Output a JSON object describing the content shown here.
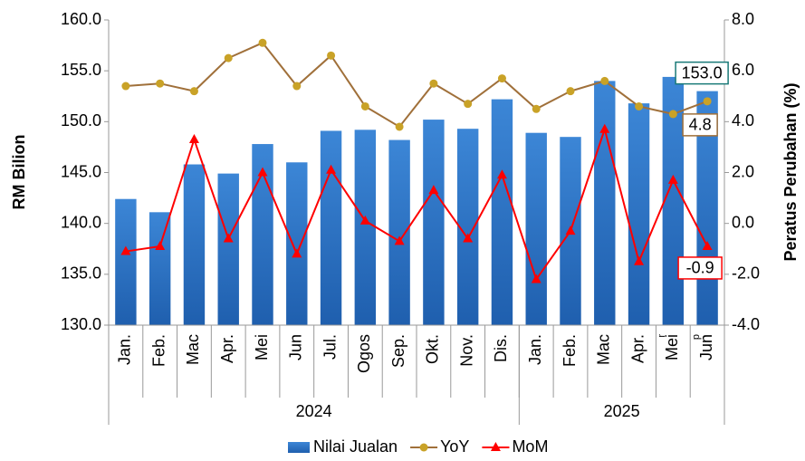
{
  "chart_data": {
    "type": "bar_line",
    "categories": [
      "Jan.",
      "Feb.",
      "Mac",
      "Apr.",
      "Mei",
      "Jun",
      "Jul.",
      "Ogos",
      "Sep.",
      "Okt.",
      "Nov.",
      "Dis.",
      "Jan.",
      "Feb.",
      "Mac",
      "Apr.",
      "Mei",
      "Jun"
    ],
    "category_marks": [
      null,
      null,
      null,
      null,
      null,
      null,
      null,
      null,
      null,
      null,
      null,
      null,
      null,
      null,
      null,
      null,
      "r",
      "p"
    ],
    "groups": [
      {
        "label": "2024",
        "start": 0,
        "end": 11
      },
      {
        "label": "2025",
        "start": 12,
        "end": 17
      }
    ],
    "y_label": "RM Bilion",
    "y2_label": "Peratus Perubahan (%)",
    "ylim": [
      130,
      160
    ],
    "yticks": [
      {
        "value": 130,
        "label": "130.0"
      },
      {
        "value": 135,
        "label": "135.0"
      },
      {
        "value": 140,
        "label": "140.0"
      },
      {
        "value": 145,
        "label": "145.0"
      },
      {
        "value": 150,
        "label": "150.0"
      },
      {
        "value": 155,
        "label": "155.0"
      },
      {
        "value": 160,
        "label": "160.0"
      }
    ],
    "y2lim": [
      -4,
      8
    ],
    "y2ticks": [
      {
        "value": -4,
        "label": "-4.0"
      },
      {
        "value": -2,
        "label": "-2.0"
      },
      {
        "value": 0,
        "label": "0.0"
      },
      {
        "value": 2,
        "label": "2.0"
      },
      {
        "value": 4,
        "label": "4.0"
      },
      {
        "value": 6,
        "label": "6.0"
      },
      {
        "value": 8,
        "label": "8.0"
      }
    ],
    "legend": "bottom",
    "series": [
      {
        "name": "Nilai Jualan",
        "type": "bar",
        "color": "#2f78c9",
        "label_color": "#1a7a78",
        "values": [
          142.4,
          141.1,
          145.8,
          144.9,
          147.8,
          146.0,
          149.1,
          149.2,
          148.2,
          150.2,
          149.3,
          152.2,
          148.9,
          148.5,
          154.0,
          151.8,
          154.4,
          153.0
        ],
        "value_labels": [
          null,
          null,
          null,
          null,
          null,
          null,
          null,
          null,
          null,
          null,
          null,
          null,
          null,
          null,
          null,
          null,
          null,
          "153.0"
        ]
      },
      {
        "name": "YoY",
        "type": "line",
        "axis": "y2",
        "color": "#a0703a",
        "marker_color": "#c9a227",
        "marker": "circle",
        "label_color": "#a0703a",
        "values": [
          5.4,
          5.5,
          5.2,
          6.5,
          7.1,
          5.4,
          6.6,
          4.6,
          3.8,
          5.5,
          4.7,
          5.7,
          4.5,
          5.2,
          5.6,
          4.6,
          4.3,
          4.8
        ],
        "value_labels": [
          null,
          null,
          null,
          null,
          null,
          null,
          null,
          null,
          null,
          null,
          null,
          null,
          null,
          null,
          null,
          null,
          null,
          "4.8"
        ]
      },
      {
        "name": "MoM",
        "type": "line",
        "axis": "y2",
        "color": "#ff0000",
        "marker_color": "#ff0000",
        "marker": "triangle",
        "label_color": "#ff0000",
        "values": [
          -1.1,
          -0.9,
          3.3,
          -0.6,
          2.0,
          -1.2,
          2.1,
          0.1,
          -0.7,
          1.3,
          -0.6,
          1.9,
          -2.2,
          -0.3,
          3.7,
          -1.5,
          1.7,
          -0.9
        ],
        "value_labels": [
          null,
          null,
          null,
          null,
          null,
          null,
          null,
          null,
          null,
          null,
          null,
          null,
          null,
          null,
          null,
          null,
          null,
          "-0.9"
        ]
      }
    ]
  }
}
